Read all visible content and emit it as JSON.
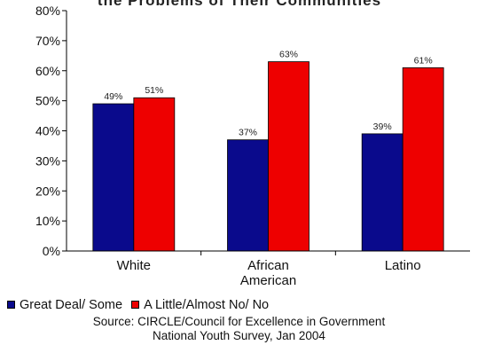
{
  "chart_data": {
    "type": "bar",
    "title": "the Problems of Their Communities",
    "categories": [
      [
        "White"
      ],
      [
        "African",
        "American"
      ],
      [
        "Latino"
      ]
    ],
    "series": [
      {
        "name": "Great Deal/ Some",
        "color": "#0a0a8c",
        "values": [
          49,
          37,
          39
        ]
      },
      {
        "name": "A Little/Almost No/ No",
        "color": "#ee0000",
        "values": [
          51,
          63,
          61
        ]
      }
    ],
    "data_labels": [
      [
        "49%",
        "37%",
        "39%"
      ],
      [
        "51%",
        "63%",
        "61%"
      ]
    ],
    "yticks": [
      "0%",
      "10%",
      "20%",
      "30%",
      "40%",
      "50%",
      "60%",
      "70%",
      "80%"
    ],
    "ylim": [
      0,
      80
    ],
    "legend_position": "bottom",
    "grid": false
  },
  "source": {
    "line1": "Source: CIRCLE/Council for Excellence in Government",
    "line2": "National Youth Survey, Jan 2004"
  }
}
